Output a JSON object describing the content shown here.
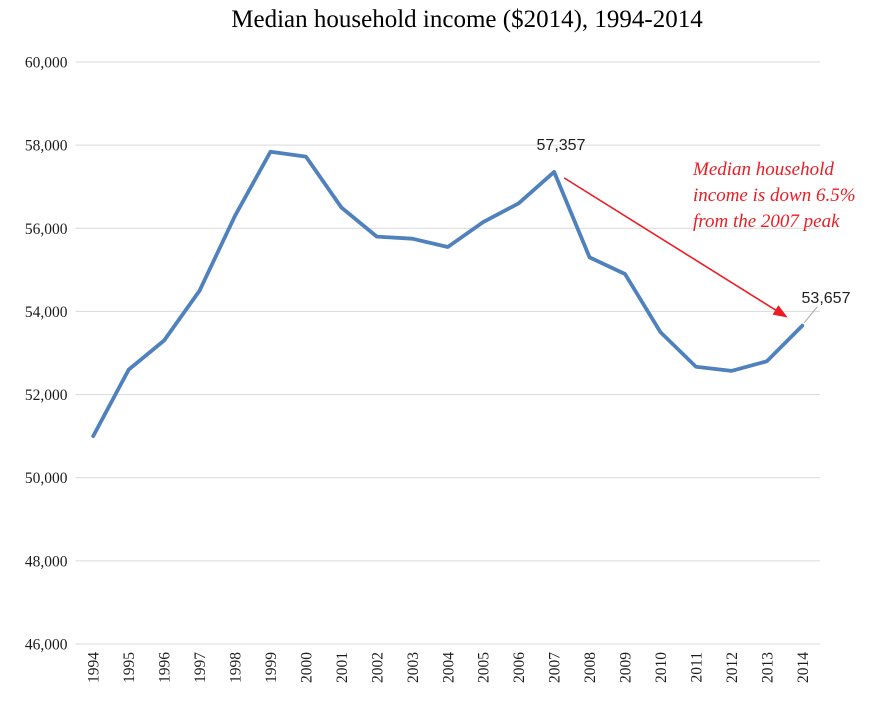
{
  "title": "Median household income ($2014), 1994-2014",
  "colors": {
    "line": "#4F81BD",
    "grid": "#D9D9D9",
    "axis_text": "#1c1c1c",
    "leader": "#A6A6A6",
    "background": "#FFFFFF"
  },
  "chart_data": {
    "type": "line",
    "title": "Median household income ($2014), 1994-2014",
    "xlabel": "",
    "ylabel": "",
    "x": [
      1994,
      1995,
      1996,
      1997,
      1998,
      1999,
      2000,
      2001,
      2002,
      2003,
      2004,
      2005,
      2006,
      2007,
      2008,
      2009,
      2010,
      2011,
      2012,
      2013,
      2014
    ],
    "series": [
      {
        "name": "Median household income ($2014)",
        "values": [
          51000,
          52600,
          53300,
          54500,
          56300,
          57843,
          57724,
          56500,
          55800,
          55750,
          55550,
          56150,
          56600,
          57357,
          55300,
          54900,
          53500,
          52670,
          52570,
          52800,
          53657
        ]
      }
    ],
    "ylim": [
      46000,
      60000
    ],
    "ytick_step": 2000,
    "ytick_labels": [
      "60,000",
      "58,000",
      "56,000",
      "54,000",
      "52,000",
      "50,000",
      "48,000",
      "46,000"
    ],
    "grid": "horizontal-only",
    "legend": "none",
    "x_tick_rotation": -90,
    "data_labels": [
      {
        "year": 2007,
        "value": 57357,
        "text": "57,357"
      },
      {
        "year": 2014,
        "value": 53657,
        "text": "53,657"
      }
    ],
    "annotation": {
      "lines": [
        "Median household",
        "income is down 6.5%",
        "from the 2007 peak"
      ],
      "color": "#ED1C24",
      "arrow": {
        "from_year": 2007,
        "to_year": 2014
      }
    }
  }
}
